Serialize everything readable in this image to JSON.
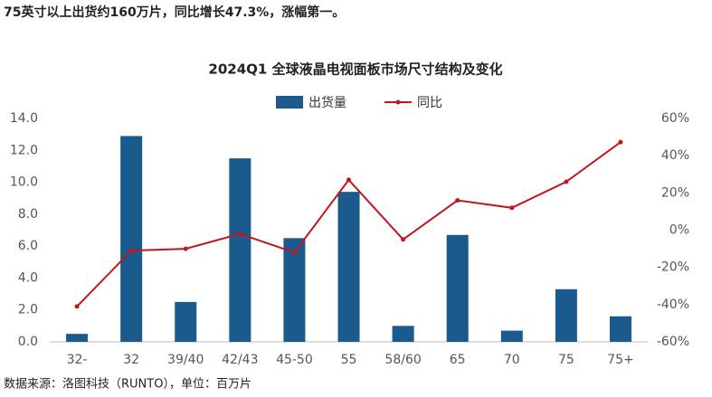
{
  "headline": "75英寸以上出货约160万片，同比增长47.3%，涨幅第一。",
  "source": "数据来源：洛图科技（RUNTO），单位：百万片",
  "chart_data": {
    "type": "bar-line",
    "title": "2024Q1 全球液晶电视面板市场尺寸结构及变化",
    "categories": [
      "32-",
      "32",
      "39/40",
      "42/43",
      "45-50",
      "55",
      "58/60",
      "65",
      "70",
      "75",
      "75+"
    ],
    "series": [
      {
        "name": "出货量",
        "color": "#1b5a8c",
        "type": "bar",
        "values": [
          0.5,
          12.9,
          2.5,
          11.5,
          6.5,
          9.4,
          1.0,
          6.7,
          0.7,
          3.3,
          1.6
        ]
      },
      {
        "name": "同比",
        "color": "#c0161e",
        "type": "line",
        "axis": "y2",
        "values": [
          -41,
          -11,
          -10,
          -2,
          -12,
          27,
          -5,
          16,
          12,
          26,
          47.3
        ]
      }
    ],
    "ylim": [
      0,
      14
    ],
    "yticks": [
      {
        "value": 0,
        "label": "0.0"
      },
      {
        "value": 2,
        "label": "2.0"
      },
      {
        "value": 4,
        "label": "4.0"
      },
      {
        "value": 6,
        "label": "6.0"
      },
      {
        "value": 8,
        "label": "8.0"
      },
      {
        "value": 10,
        "label": "10.0"
      },
      {
        "value": 12,
        "label": "12.0"
      },
      {
        "value": 14,
        "label": "14.0"
      }
    ],
    "y2lim": [
      -60,
      60
    ],
    "y2ticks": [
      {
        "value": -60,
        "label": "-60%"
      },
      {
        "value": -40,
        "label": "-40%"
      },
      {
        "value": -20,
        "label": "-20%"
      },
      {
        "value": 0,
        "label": "0%"
      },
      {
        "value": 20,
        "label": "20%"
      },
      {
        "value": 40,
        "label": "40%"
      },
      {
        "value": 60,
        "label": "60%"
      }
    ],
    "legend": "top"
  }
}
